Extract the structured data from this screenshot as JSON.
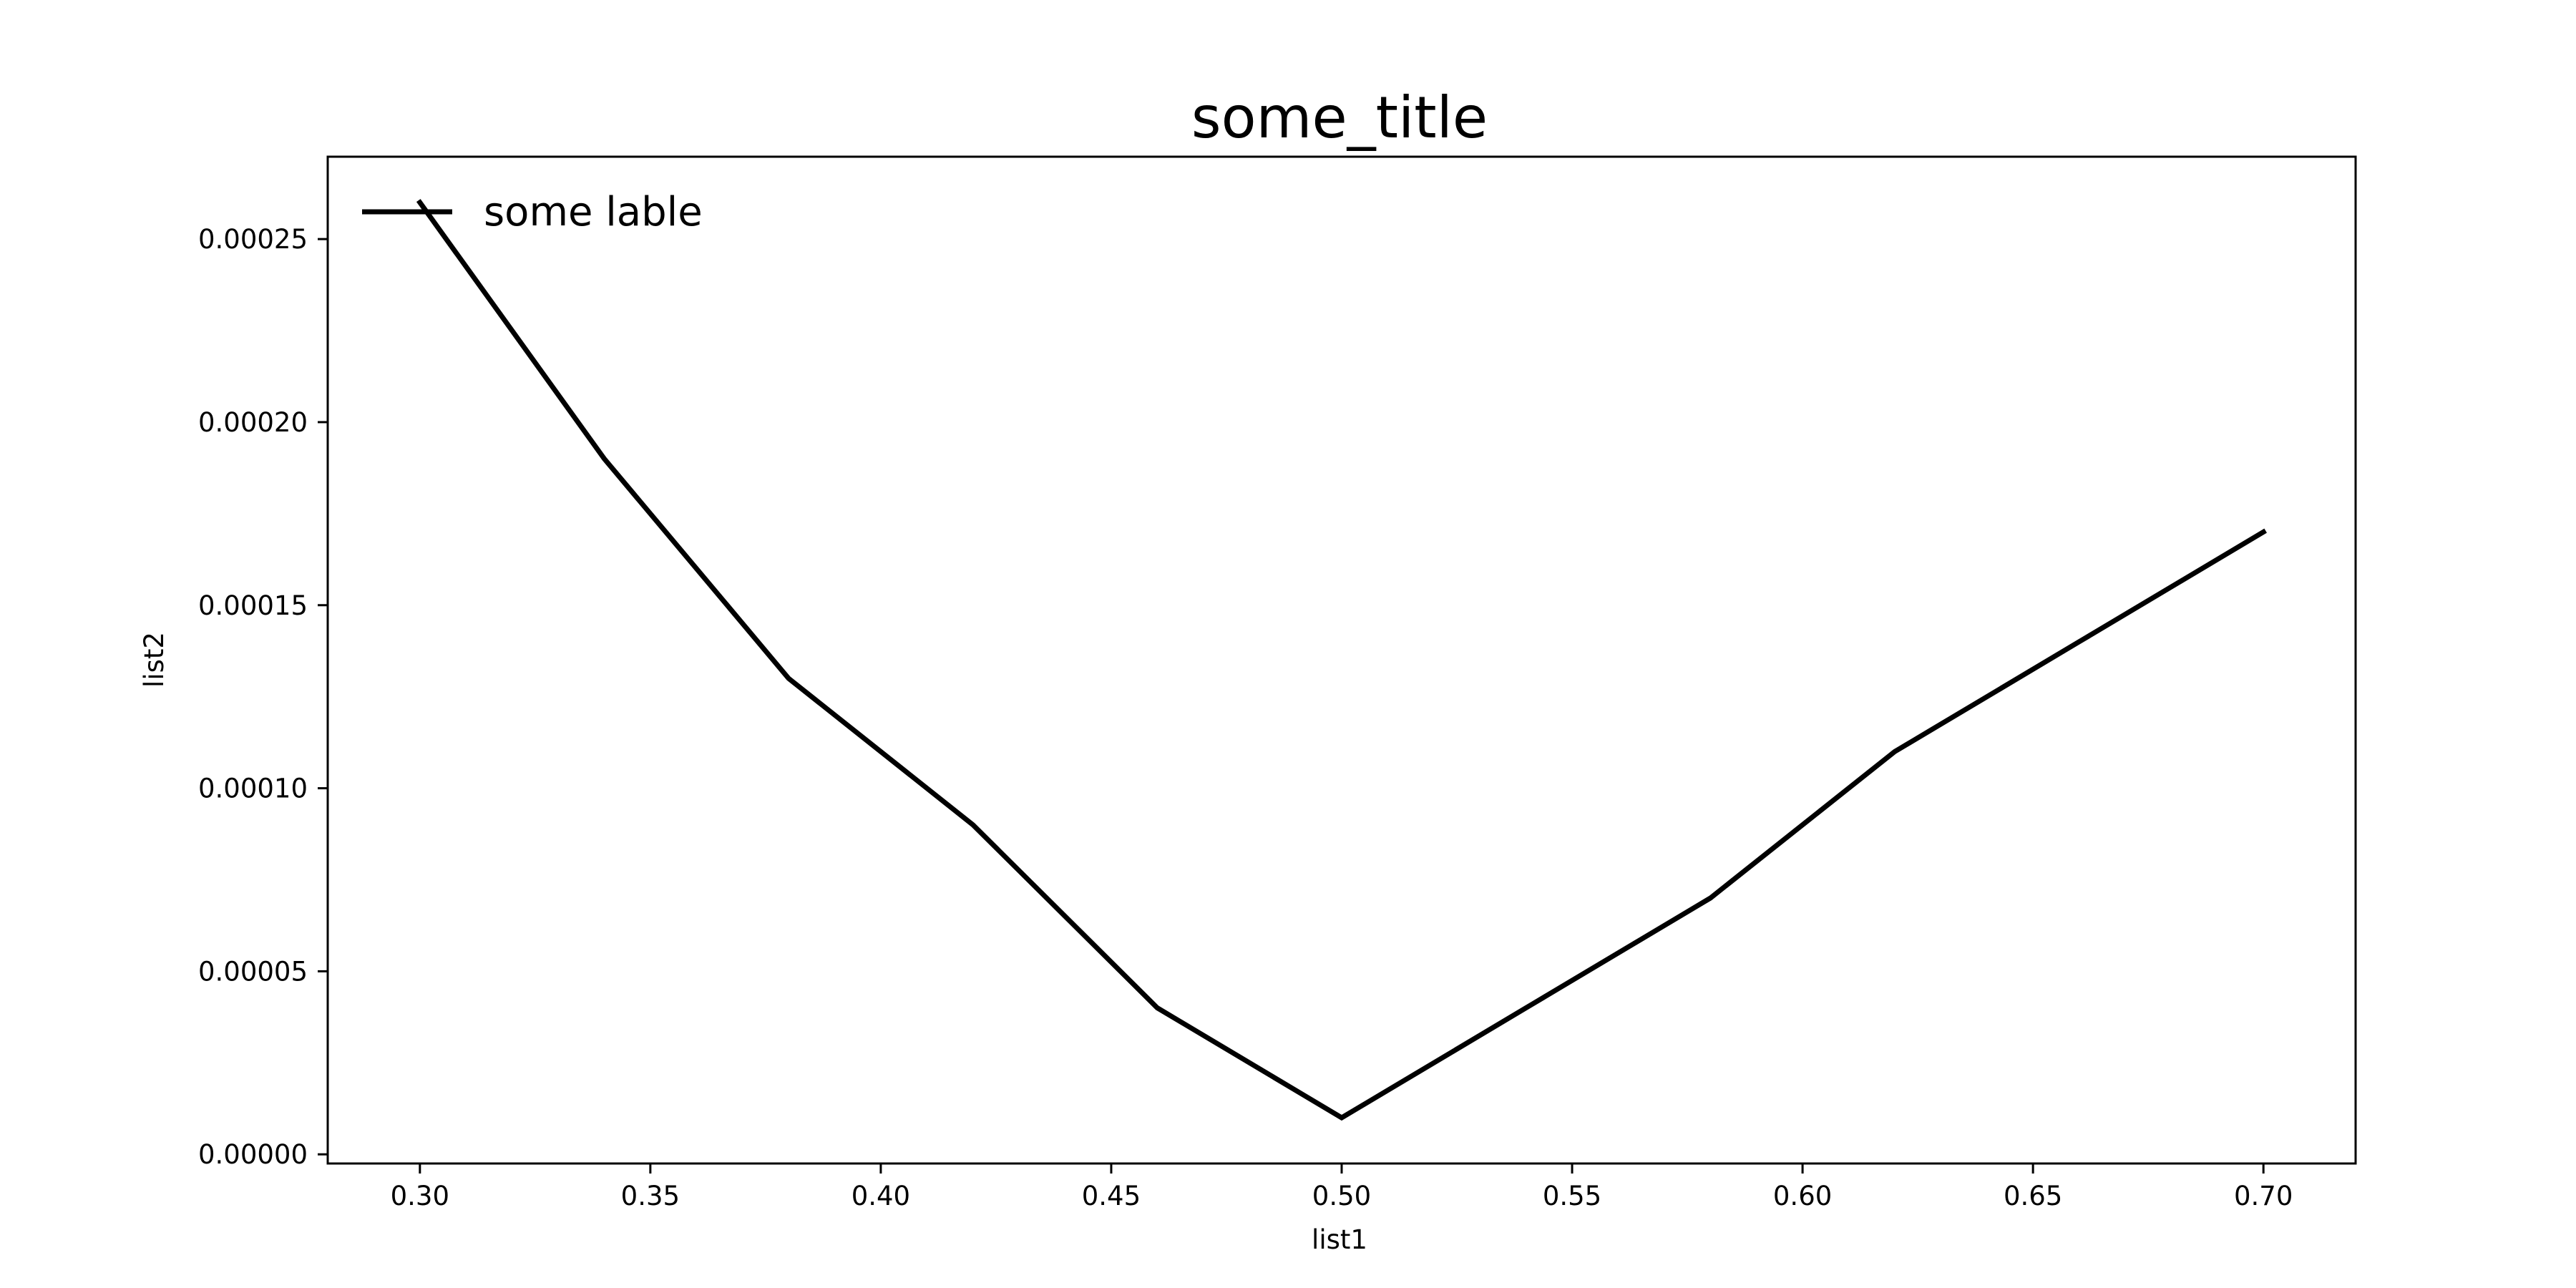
{
  "chart_data": {
    "type": "line",
    "title": "some_title",
    "xlabel": "list1",
    "ylabel": "list2",
    "x": [
      0.3,
      0.34,
      0.38,
      0.42,
      0.46,
      0.5,
      0.54,
      0.58,
      0.62,
      0.66,
      0.7
    ],
    "series": [
      {
        "name": "some lable",
        "color": "#000000",
        "values": [
          0.00026,
          0.00019,
          0.00013,
          9e-05,
          4e-05,
          1e-05,
          4e-05,
          7e-05,
          0.00011,
          0.00014,
          0.00017
        ]
      }
    ],
    "xlim": [
      0.28,
      0.72
    ],
    "ylim": [
      -2.5e-06,
      0.0002725
    ],
    "xticks": [
      0.3,
      0.35,
      0.4,
      0.45,
      0.5,
      0.55,
      0.6,
      0.65,
      0.7
    ],
    "xtick_labels": [
      "0.30",
      "0.35",
      "0.40",
      "0.45",
      "0.50",
      "0.55",
      "0.60",
      "0.65",
      "0.70"
    ],
    "yticks": [
      0.0,
      5e-05,
      0.0001,
      0.00015,
      0.0002,
      0.00025
    ],
    "ytick_labels": [
      "0.00000",
      "0.00005",
      "0.00010",
      "0.00015",
      "0.00020",
      "0.00025"
    ],
    "grid": false,
    "legend_position": "top-left"
  }
}
